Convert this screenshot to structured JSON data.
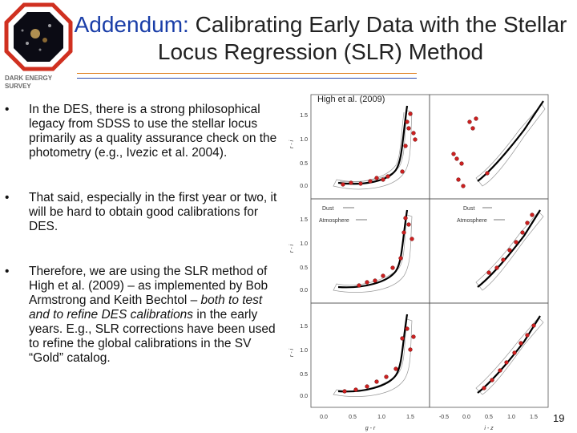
{
  "logo": {
    "text": "DARK ENERGY SURVEY"
  },
  "title": {
    "highlight": "Addendum:",
    "rest": " Calibrating Early Data with the Stellar Locus Regression (SLR) Method"
  },
  "bullets": [
    {
      "text": "In the DES, there is a strong philosophical legacy from SDSS to use the stellar locus primarily as a quality assurance check on the photometry (e.g., Ivezic et al. 2004)."
    },
    {
      "text": "That said, especially in the first year or two, it will be hard to obtain good calibrations for DES."
    },
    {
      "pre": "Therefore, we are using the SLR method of High et al. (2009) – as implemented by Bob Armstrong and Keith Bechtol – ",
      "em": "both to test and to refine DES calibrations",
      "post": " in the early years.  E.g., SLR corrections have been used to refine the global calibrations in the SV “Gold” catalog."
    }
  ],
  "figure": {
    "citation": "High et al. (2009)",
    "ylabel": "r - i",
    "xlabel_left": "g - r",
    "xlabel_right": "i - z",
    "yticks": [
      "1.5",
      "1.0",
      "0.5",
      "0.0"
    ],
    "xticks_left": [
      "0.0",
      "0.5",
      "1.0",
      "1.5"
    ],
    "xticks_right": [
      "-0.5",
      "0.0",
      "0.5",
      "1.0",
      "1.5"
    ],
    "legend": {
      "dust": "Dust",
      "atmosphere": "Atmosphere"
    }
  },
  "page_number": "19"
}
